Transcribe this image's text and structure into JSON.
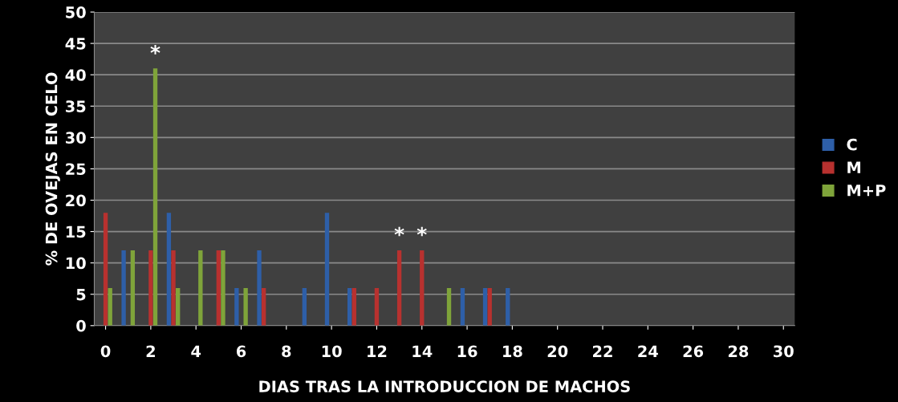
{
  "chart_data": {
    "type": "bar",
    "xlabel": "DIAS TRAS LA INTRODUCCION DE MACHOS",
    "ylabel": "% DE OVEJAS EN CELO",
    "x": [
      0,
      1,
      2,
      3,
      4,
      5,
      6,
      7,
      8,
      9,
      10,
      11,
      12,
      13,
      14,
      15,
      16,
      17,
      18,
      19,
      20,
      21,
      22,
      23,
      24,
      25,
      26,
      27,
      28,
      29,
      30
    ],
    "series": [
      {
        "name": "C",
        "color": "#2e5fa8",
        "values": [
          0,
          12,
          0,
          18,
          0,
          0,
          6,
          12,
          0,
          6,
          18,
          6,
          0,
          0,
          0,
          0,
          6,
          6,
          6,
          0,
          0,
          0,
          0,
          0,
          0,
          0,
          0,
          0,
          0,
          0,
          0
        ]
      },
      {
        "name": "M",
        "color": "#b8312f",
        "values": [
          18,
          0,
          12,
          12,
          0,
          12,
          0,
          6,
          0,
          0,
          0,
          6,
          6,
          12,
          12,
          0,
          0,
          6,
          0,
          0,
          0,
          0,
          0,
          0,
          0,
          0,
          0,
          0,
          0,
          0,
          0
        ]
      },
      {
        "name": "M+P",
        "color": "#7fa43a",
        "values": [
          6,
          12,
          41,
          6,
          12,
          12,
          6,
          0,
          0,
          0,
          0,
          0,
          0,
          0,
          0,
          6,
          0,
          0,
          0,
          0,
          0,
          0,
          0,
          0,
          0,
          0,
          0,
          0,
          0,
          0,
          0
        ]
      }
    ],
    "annotations": [
      {
        "text": "*",
        "x": 2,
        "y": 41
      },
      {
        "text": "*",
        "x": 13,
        "y": 12
      },
      {
        "text": "*",
        "x": 14,
        "y": 12
      }
    ],
    "xlim": [
      -0.5,
      30.5
    ],
    "xticks": [
      0,
      2,
      4,
      6,
      8,
      10,
      12,
      14,
      16,
      18,
      20,
      22,
      24,
      26,
      28,
      30
    ],
    "ylim": [
      0,
      50
    ],
    "yticks": [
      0,
      5,
      10,
      15,
      20,
      25,
      30,
      35,
      40,
      45,
      50
    ],
    "grid": "y",
    "legend": "right"
  }
}
